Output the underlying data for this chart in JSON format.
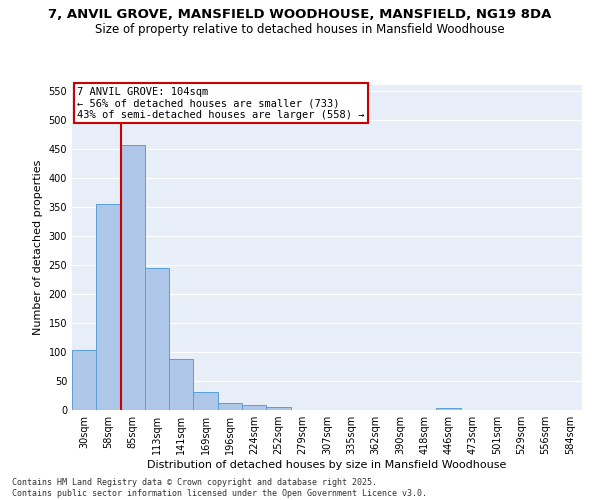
{
  "title1": "7, ANVIL GROVE, MANSFIELD WOODHOUSE, MANSFIELD, NG19 8DA",
  "title2": "Size of property relative to detached houses in Mansfield Woodhouse",
  "xlabel": "Distribution of detached houses by size in Mansfield Woodhouse",
  "ylabel": "Number of detached properties",
  "categories": [
    "30sqm",
    "58sqm",
    "85sqm",
    "113sqm",
    "141sqm",
    "169sqm",
    "196sqm",
    "224sqm",
    "252sqm",
    "279sqm",
    "307sqm",
    "335sqm",
    "362sqm",
    "390sqm",
    "418sqm",
    "446sqm",
    "473sqm",
    "501sqm",
    "529sqm",
    "556sqm",
    "584sqm"
  ],
  "values": [
    104,
    355,
    456,
    244,
    88,
    31,
    12,
    8,
    5,
    0,
    0,
    0,
    0,
    0,
    0,
    4,
    0,
    0,
    0,
    0,
    0
  ],
  "bar_color": "#aec6e8",
  "bar_edge_color": "#5a9fd4",
  "annotation_line1": "7 ANVIL GROVE: 104sqm",
  "annotation_line2": "← 56% of detached houses are smaller (733)",
  "annotation_line3": "43% of semi-detached houses are larger (558) →",
  "vline_index": 2,
  "vline_color": "#cc0000",
  "box_color": "#cc0000",
  "ylim": [
    0,
    560
  ],
  "yticks": [
    0,
    50,
    100,
    150,
    200,
    250,
    300,
    350,
    400,
    450,
    500,
    550
  ],
  "bg_color": "#e8eef7",
  "footer": "Contains HM Land Registry data © Crown copyright and database right 2025.\nContains public sector information licensed under the Open Government Licence v3.0.",
  "title1_fontsize": 9.5,
  "title2_fontsize": 8.5,
  "axis_label_fontsize": 8,
  "tick_fontsize": 7,
  "footer_fontsize": 6,
  "annotation_fontsize": 7.5
}
